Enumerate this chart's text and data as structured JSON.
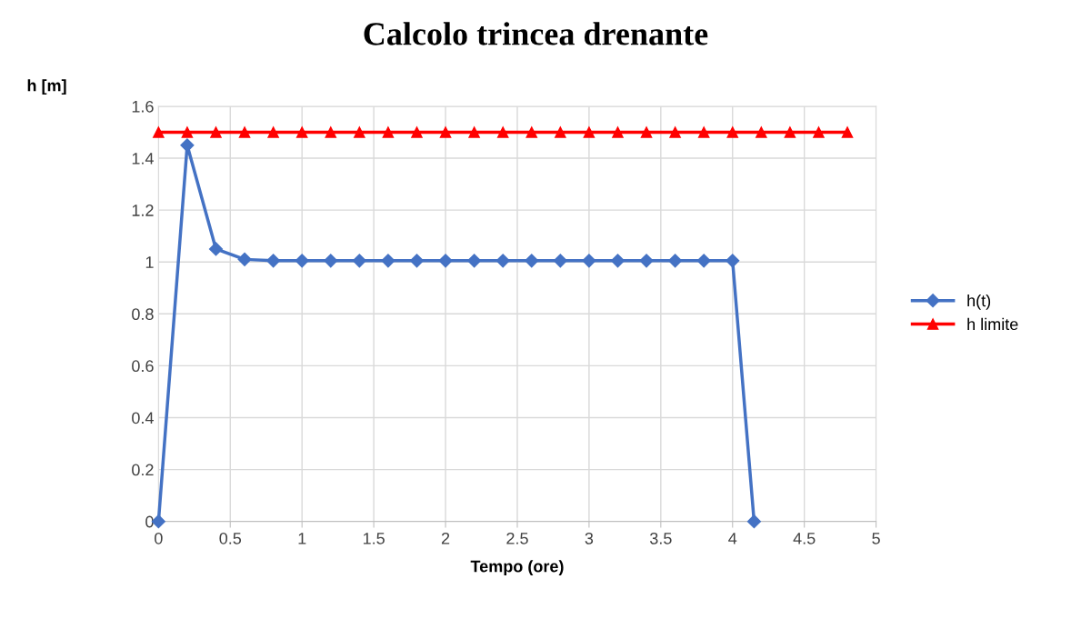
{
  "chart_data": {
    "type": "line",
    "title": "Calcolo trincea drenante",
    "xlabel": "Tempo (ore)",
    "ylabel": "h [m]",
    "xlim": [
      0,
      5
    ],
    "xticks": [
      0,
      0.5,
      1,
      1.5,
      2,
      2.5,
      3,
      3.5,
      4,
      4.5,
      5
    ],
    "ylim": [
      0,
      1.6
    ],
    "yticks": [
      0,
      0.2,
      0.4,
      0.6,
      0.8,
      1,
      1.2,
      1.4,
      1.6
    ],
    "grid": true,
    "legend": "right",
    "series": [
      {
        "name": "h(t)",
        "color": "#4472c4",
        "marker": "diamond",
        "x": [
          0,
          0.2,
          0.4,
          0.6,
          0.8,
          1,
          1.2,
          1.4,
          1.6,
          1.8,
          2,
          2.2,
          2.4,
          2.6,
          2.8,
          3,
          3.2,
          3.4,
          3.6,
          3.8,
          4,
          4.15
        ],
        "values": [
          0,
          1.45,
          1.05,
          1.01,
          1.005,
          1.005,
          1.005,
          1.005,
          1.005,
          1.005,
          1.005,
          1.005,
          1.005,
          1.005,
          1.005,
          1.005,
          1.005,
          1.005,
          1.005,
          1.005,
          1.005,
          0
        ]
      },
      {
        "name": "h limite",
        "color": "#ff0000",
        "marker": "triangle",
        "x": [
          0,
          0.2,
          0.4,
          0.6,
          0.8,
          1,
          1.2,
          1.4,
          1.6,
          1.8,
          2,
          2.2,
          2.4,
          2.6,
          2.8,
          3,
          3.2,
          3.4,
          3.6,
          3.8,
          4,
          4.2,
          4.4,
          4.6,
          4.8
        ],
        "values": [
          1.5,
          1.5,
          1.5,
          1.5,
          1.5,
          1.5,
          1.5,
          1.5,
          1.5,
          1.5,
          1.5,
          1.5,
          1.5,
          1.5,
          1.5,
          1.5,
          1.5,
          1.5,
          1.5,
          1.5,
          1.5,
          1.5,
          1.5,
          1.5,
          1.5
        ]
      }
    ]
  }
}
